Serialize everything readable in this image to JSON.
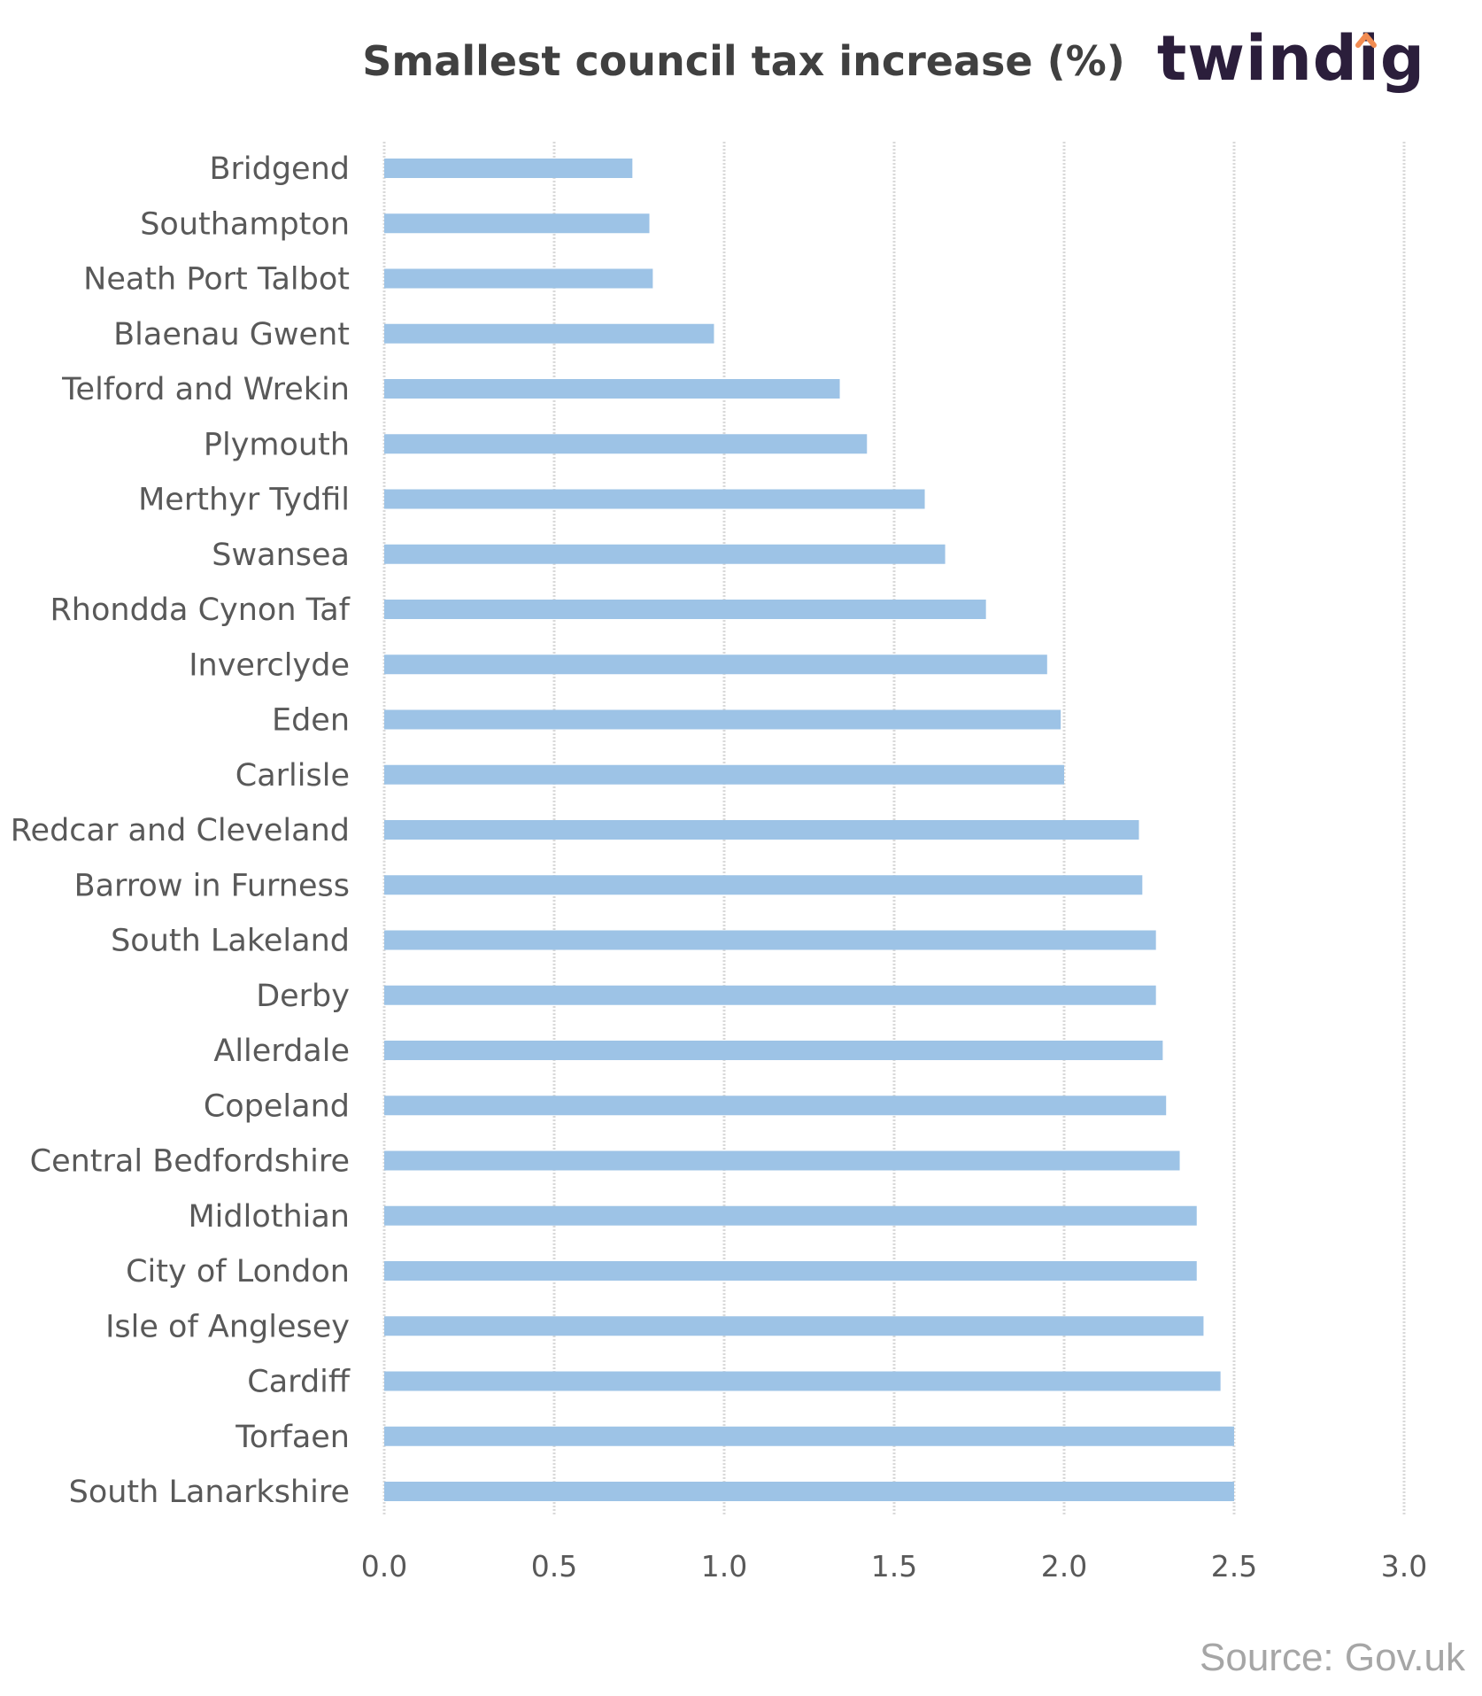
{
  "brand": {
    "logo_text": "twindig",
    "accent": "#f28c52",
    "color": "#2b1e3b"
  },
  "source": "Source: Gov.uk",
  "chart_data": {
    "type": "bar",
    "orientation": "horizontal",
    "title": "Smallest council tax increase (%)",
    "xlabel": "",
    "ylabel": "",
    "xlim": [
      0,
      3.0
    ],
    "xticks": [
      "0.0",
      "0.5",
      "1.0",
      "1.5",
      "2.0",
      "2.5",
      "3.0"
    ],
    "grid": true,
    "bar_color": "#9dc3e6",
    "categories": [
      "Bridgend",
      "Southampton",
      "Neath Port Talbot",
      "Blaenau Gwent",
      "Telford and Wrekin",
      "Plymouth",
      "Merthyr Tydfil",
      "Swansea",
      "Rhondda Cynon Taf",
      "Inverclyde",
      "Eden",
      "Carlisle",
      "Redcar and Cleveland",
      "Barrow in Furness",
      "South Lakeland",
      "Derby",
      "Allerdale",
      "Copeland",
      "Central Bedfordshire",
      "Midlothian",
      "City of London",
      "Isle of Anglesey",
      "Cardiff",
      "Torfaen",
      "South Lanarkshire"
    ],
    "values": [
      0.73,
      0.78,
      0.79,
      0.97,
      1.34,
      1.42,
      1.59,
      1.65,
      1.77,
      1.95,
      1.99,
      2.0,
      2.22,
      2.23,
      2.27,
      2.27,
      2.29,
      2.3,
      2.34,
      2.39,
      2.39,
      2.41,
      2.46,
      2.5,
      2.5
    ]
  }
}
